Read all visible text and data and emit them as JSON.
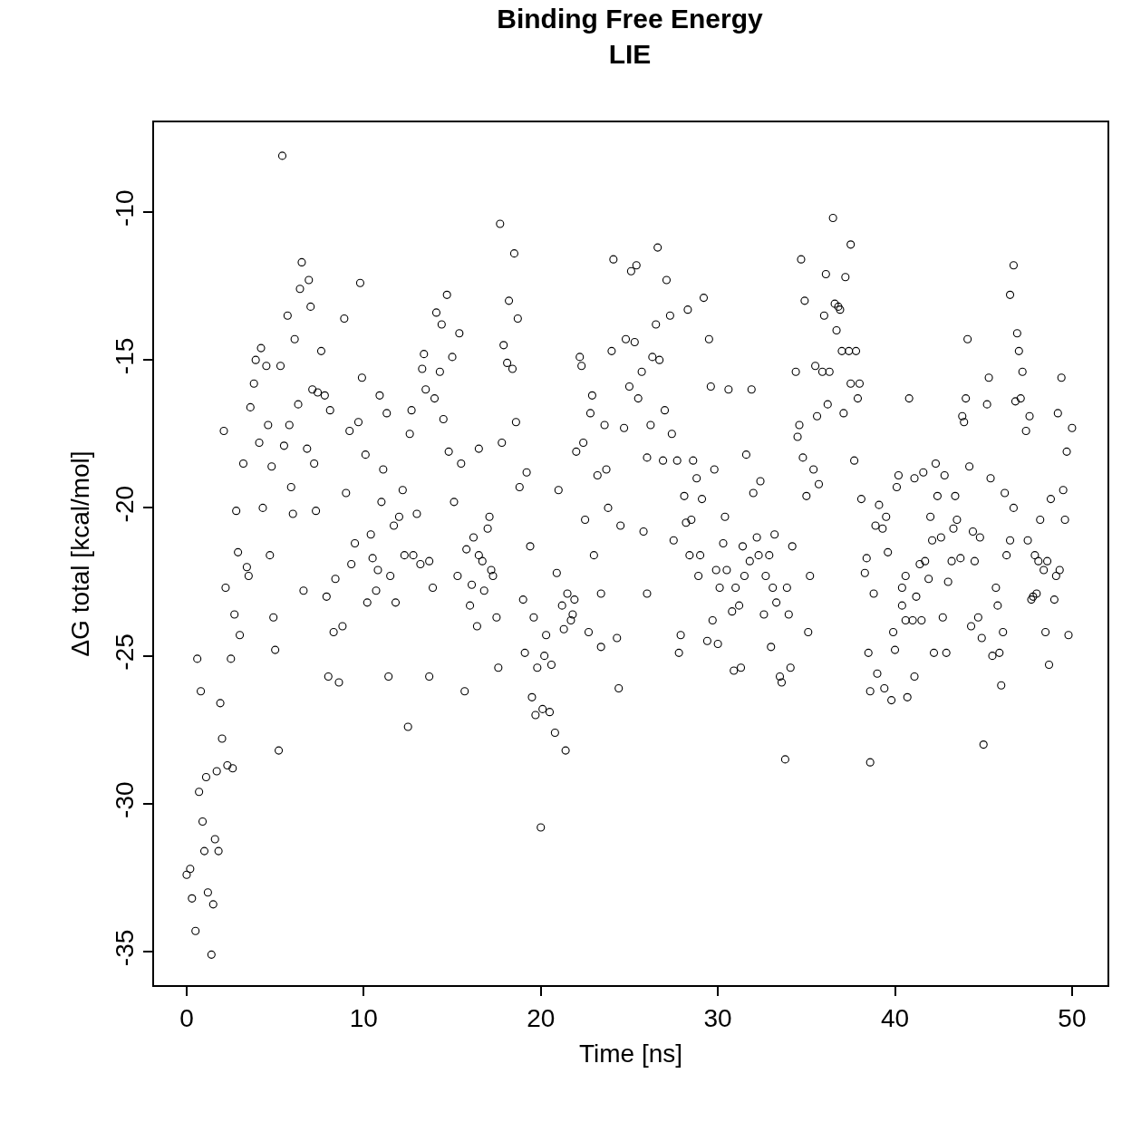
{
  "chart_data": {
    "type": "scatter",
    "title": "Binding Free Energy\nLIE",
    "xlabel": "Time [ns]",
    "ylabel": "ΔG total [kcal/mol]",
    "xlim": [
      -1.84,
      52.0
    ],
    "ylim": [
      -36.13,
      -6.97
    ],
    "xticks": [
      0,
      10,
      20,
      30,
      40,
      50
    ],
    "yticks": [
      -35,
      -30,
      -25,
      -20,
      -15,
      -10
    ],
    "marker": "circle",
    "series": [
      {
        "color": "#000000",
        "x": [
          0,
          0.2,
          0.3,
          0.5,
          0.6,
          0.7,
          0.8,
          0.9,
          1.0,
          1.1,
          1.2,
          1.4,
          1.5,
          1.6,
          1.8,
          1.7,
          1.9,
          2.0,
          2.1,
          2.2,
          2.3,
          2.5,
          2.6,
          2.7,
          2.8,
          2.9,
          3.0,
          3.2,
          3.4,
          3.5,
          3.6,
          3.8,
          3.9,
          4.1,
          4.2,
          4.3,
          4.5,
          4.6,
          4.7,
          4.8,
          4.9,
          5.0,
          5.2,
          5.3,
          5.4,
          5.5,
          5.7,
          5.8,
          5.9,
          6.0,
          6.1,
          6.3,
          6.4,
          6.5,
          6.6,
          6.8,
          6.9,
          7.0,
          7.1,
          7.2,
          7.3,
          7.4,
          7.6,
          7.8,
          7.9,
          8.0,
          8.1,
          8.3,
          8.4,
          8.6,
          8.8,
          8.9,
          9.0,
          9.2,
          9.3,
          9.5,
          9.7,
          9.8,
          9.9,
          10.1,
          10.2,
          10.4,
          10.5,
          10.7,
          10.8,
          10.9,
          11.0,
          11.1,
          11.3,
          11.4,
          11.5,
          11.7,
          11.8,
          12.0,
          12.2,
          12.3,
          12.5,
          12.6,
          12.7,
          12.8,
          13.0,
          13.2,
          13.3,
          13.4,
          13.5,
          13.7,
          13.7,
          13.9,
          14.0,
          14.1,
          14.3,
          14.4,
          14.5,
          14.7,
          14.8,
          15.0,
          15.1,
          15.3,
          15.4,
          15.5,
          15.7,
          15.8,
          16.0,
          16.1,
          16.2,
          16.4,
          16.5,
          16.5,
          16.7,
          16.8,
          17.0,
          17.1,
          17.2,
          17.3,
          17.5,
          17.6,
          17.7,
          17.8,
          17.9,
          18.1,
          18.2,
          18.4,
          18.5,
          18.6,
          18.7,
          18.8,
          19.0,
          19.1,
          19.2,
          19.4,
          19.5,
          19.6,
          19.7,
          19.8,
          20.0,
          20.1,
          20.2,
          20.3,
          20.5,
          20.6,
          20.8,
          20.9,
          21.0,
          21.2,
          21.3,
          21.4,
          21.5,
          21.7,
          21.8,
          21.9,
          22.0,
          22.2,
          22.3,
          22.4,
          22.5,
          22.7,
          22.8,
          22.9,
          23.0,
          23.2,
          23.4,
          23.4,
          23.6,
          23.7,
          23.8,
          24.0,
          24.1,
          24.3,
          24.4,
          24.5,
          24.7,
          24.8,
          25.0,
          25.1,
          25.3,
          25.4,
          25.5,
          25.7,
          25.8,
          26.0,
          26.0,
          26.2,
          26.3,
          26.5,
          26.6,
          26.7,
          26.9,
          27.0,
          27.1,
          27.3,
          27.4,
          27.5,
          27.7,
          27.8,
          27.9,
          28.1,
          28.2,
          28.3,
          28.4,
          28.5,
          28.6,
          28.8,
          28.9,
          29.0,
          29.1,
          29.2,
          29.4,
          29.5,
          29.6,
          29.7,
          29.8,
          29.9,
          30.0,
          30.1,
          30.3,
          30.4,
          30.5,
          30.6,
          30.8,
          30.9,
          31.0,
          31.2,
          31.3,
          31.4,
          31.5,
          31.6,
          31.8,
          31.9,
          32.0,
          32.2,
          32.3,
          32.4,
          32.6,
          32.7,
          32.9,
          33.0,
          33.1,
          33.2,
          33.3,
          33.5,
          33.6,
          33.8,
          33.9,
          34.0,
          34.1,
          34.2,
          34.4,
          34.5,
          34.6,
          34.7,
          34.8,
          34.9,
          35.0,
          35.1,
          35.2,
          35.4,
          35.5,
          35.6,
          35.7,
          35.9,
          36.0,
          36.1,
          36.2,
          36.3,
          36.5,
          36.6,
          36.7,
          36.8,
          36.9,
          37.0,
          37.1,
          37.2,
          37.4,
          37.5,
          37.5,
          37.7,
          37.8,
          37.9,
          38.0,
          38.1,
          38.3,
          38.4,
          38.5,
          38.6,
          38.6,
          38.8,
          38.9,
          39.0,
          39.1,
          39.3,
          39.4,
          39.5,
          39.6,
          39.8,
          39.9,
          40.0,
          40.1,
          40.2,
          40.4,
          40.4,
          40.6,
          40.6,
          40.7,
          40.8,
          41.0,
          41.1,
          41.1,
          41.2,
          41.4,
          41.5,
          41.6,
          41.7,
          41.9,
          42.0,
          42.1,
          42.2,
          42.3,
          42.4,
          42.6,
          42.7,
          42.8,
          42.9,
          43.0,
          43.2,
          43.3,
          43.4,
          43.5,
          43.7,
          43.8,
          43.9,
          44.0,
          44.1,
          44.2,
          44.3,
          44.4,
          44.5,
          44.7,
          44.8,
          44.9,
          45.0,
          45.2,
          45.3,
          45.4,
          45.5,
          45.7,
          45.8,
          45.9,
          46.0,
          46.1,
          46.2,
          46.3,
          46.5,
          46.5,
          46.7,
          46.7,
          46.8,
          46.9,
          47.0,
          47.1,
          47.2,
          47.4,
          47.5,
          47.6,
          47.7,
          47.8,
          47.9,
          48.0,
          48.1,
          48.2,
          48.4,
          48.5,
          48.6,
          48.7,
          48.8,
          49.0,
          49.1,
          49.2,
          49.3,
          49.4,
          49.5,
          49.6,
          49.7,
          49.8,
          50.0
        ],
        "values": [
          -32.4,
          -32.2,
          -33.2,
          -34.3,
          -25.1,
          -29.6,
          -26.2,
          -30.6,
          -31.6,
          -29.1,
          -33.0,
          -35.1,
          -33.4,
          -31.2,
          -31.6,
          -28.9,
          -26.6,
          -27.8,
          -17.4,
          -22.7,
          -28.7,
          -25.1,
          -28.8,
          -23.6,
          -20.1,
          -21.5,
          -24.3,
          -18.5,
          -22.0,
          -22.3,
          -16.6,
          -15.8,
          -15.0,
          -17.8,
          -14.6,
          -20.0,
          -15.2,
          -17.2,
          -21.6,
          -18.6,
          -23.7,
          -24.8,
          -28.2,
          -15.2,
          -8.1,
          -17.9,
          -13.5,
          -17.2,
          -19.3,
          -20.2,
          -14.3,
          -16.5,
          -12.6,
          -11.7,
          -22.8,
          -18.0,
          -12.3,
          -13.2,
          -16.0,
          -18.5,
          -20.1,
          -16.1,
          -14.7,
          -16.2,
          -23.0,
          -25.7,
          -16.7,
          -24.2,
          -22.4,
          -25.9,
          -24.0,
          -13.6,
          -19.5,
          -17.4,
          -21.9,
          -21.2,
          -17.1,
          -12.4,
          -15.6,
          -18.2,
          -23.2,
          -20.9,
          -21.7,
          -22.8,
          -22.1,
          -16.2,
          -19.8,
          -18.7,
          -16.8,
          -25.7,
          -22.3,
          -20.6,
          -23.2,
          -20.3,
          -19.4,
          -21.6,
          -27.4,
          -17.5,
          -16.7,
          -21.6,
          -20.2,
          -21.9,
          -15.3,
          -14.8,
          -16.0,
          -21.8,
          -25.7,
          -22.7,
          -16.3,
          -13.4,
          -15.4,
          -13.8,
          -17.0,
          -12.8,
          -18.1,
          -14.9,
          -19.8,
          -22.3,
          -14.1,
          -18.5,
          -26.2,
          -21.4,
          -23.3,
          -22.6,
          -21.0,
          -24.0,
          -21.6,
          -18.0,
          -21.8,
          -22.8,
          -20.7,
          -20.3,
          -22.1,
          -22.3,
          -23.7,
          -25.4,
          -10.4,
          -17.8,
          -14.5,
          -15.1,
          -13.0,
          -15.3,
          -11.4,
          -17.1,
          -13.6,
          -19.3,
          -23.1,
          -24.9,
          -18.8,
          -21.3,
          -26.4,
          -23.7,
          -27.0,
          -25.4,
          -30.8,
          -26.8,
          -25.0,
          -24.3,
          -26.9,
          -25.3,
          -27.6,
          -22.2,
          -19.4,
          -23.3,
          -24.1,
          -28.2,
          -22.9,
          -23.8,
          -23.6,
          -23.1,
          -18.1,
          -14.9,
          -15.2,
          -17.8,
          -20.4,
          -24.2,
          -16.8,
          -16.2,
          -21.6,
          -18.9,
          -22.9,
          -24.7,
          -17.2,
          -18.7,
          -20.0,
          -14.7,
          -11.6,
          -24.4,
          -26.1,
          -20.6,
          -17.3,
          -14.3,
          -15.9,
          -12.0,
          -14.4,
          -11.8,
          -16.3,
          -15.4,
          -20.8,
          -18.3,
          -22.9,
          -17.2,
          -14.9,
          -13.8,
          -11.2,
          -15.0,
          -18.4,
          -16.7,
          -12.3,
          -13.5,
          -17.5,
          -21.1,
          -18.4,
          -24.9,
          -24.3,
          -19.6,
          -20.5,
          -13.3,
          -21.6,
          -20.4,
          -18.4,
          -19.0,
          -22.3,
          -21.6,
          -19.7,
          -12.9,
          -24.5,
          -14.3,
          -15.9,
          -23.8,
          -18.7,
          -22.1,
          -24.6,
          -22.7,
          -21.2,
          -20.3,
          -22.1,
          -16.0,
          -23.5,
          -25.5,
          -22.7,
          -23.3,
          -25.4,
          -21.3,
          -22.3,
          -18.2,
          -21.8,
          -16.0,
          -19.5,
          -21.0,
          -21.6,
          -19.1,
          -23.6,
          -22.3,
          -21.6,
          -24.7,
          -22.7,
          -20.9,
          -23.2,
          -25.7,
          -25.9,
          -28.5,
          -22.7,
          -23.6,
          -25.4,
          -21.3,
          -15.4,
          -17.6,
          -17.2,
          -11.6,
          -18.3,
          -13.0,
          -19.6,
          -24.2,
          -22.3,
          -18.7,
          -15.2,
          -16.9,
          -19.2,
          -15.4,
          -13.5,
          -12.1,
          -16.5,
          -15.4,
          -10.2,
          -13.1,
          -14.0,
          -13.2,
          -13.3,
          -14.7,
          -16.8,
          -12.2,
          -14.7,
          -15.8,
          -11.1,
          -18.4,
          -14.7,
          -16.3,
          -15.8,
          -19.7,
          -22.2,
          -21.7,
          -24.9,
          -26.2,
          -28.6,
          -22.9,
          -20.6,
          -25.6,
          -19.9,
          -20.7,
          -26.1,
          -20.3,
          -21.5,
          -26.5,
          -24.2,
          -24.8,
          -19.3,
          -18.9,
          -23.3,
          -22.7,
          -22.3,
          -23.8,
          -26.4,
          -16.3,
          -23.8,
          -25.7,
          -19.0,
          -23.0,
          -21.9,
          -23.8,
          -18.8,
          -21.8,
          -22.4,
          -20.3,
          -21.1,
          -24.9,
          -18.5,
          -19.6,
          -21.0,
          -23.7,
          -18.9,
          -24.9,
          -22.5,
          -21.8,
          -20.7,
          -19.6,
          -20.4,
          -21.7,
          -16.9,
          -17.1,
          -16.3,
          -14.3,
          -18.6,
          -24.0,
          -20.8,
          -21.8,
          -23.7,
          -21.0,
          -24.4,
          -28.0,
          -16.5,
          -15.6,
          -19.0,
          -25.0,
          -22.7,
          -23.3,
          -24.9,
          -26.0,
          -24.2,
          -19.5,
          -21.6,
          -12.8,
          -21.1,
          -11.8,
          -20.0,
          -16.4,
          -14.1,
          -14.7,
          -16.3,
          -15.4,
          -17.4,
          -21.1,
          -16.9,
          -23.1,
          -23.0,
          -21.6,
          -22.9,
          -21.8,
          -20.4,
          -22.1,
          -24.2,
          -21.8,
          -25.3,
          -19.7,
          -23.1,
          -22.3,
          -16.8,
          -22.1,
          -15.6,
          -19.4,
          -20.4,
          -18.1,
          -24.3,
          -17.3
        ]
      }
    ]
  }
}
